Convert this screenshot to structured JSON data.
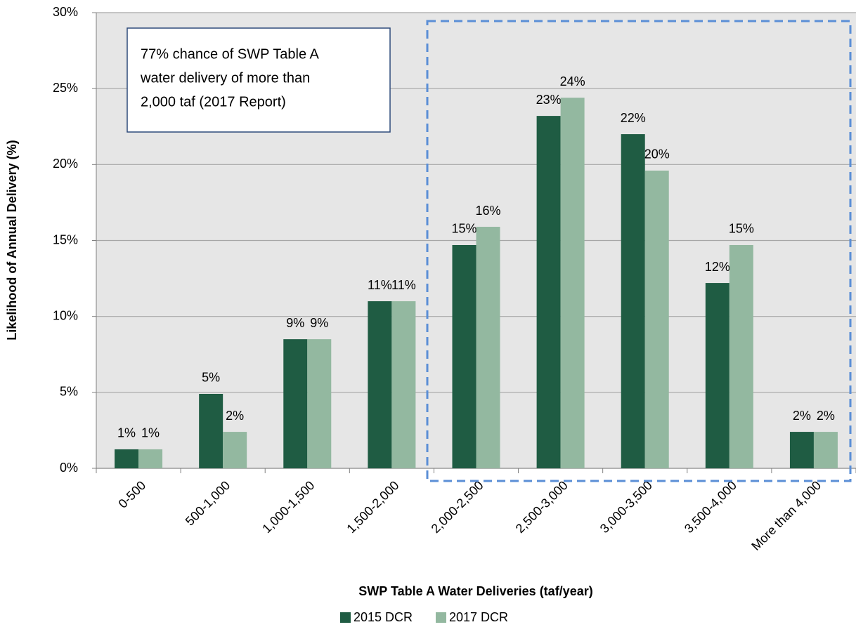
{
  "chart_data": {
    "type": "bar",
    "annotation": [
      "77% chance of SWP Table A",
      "water delivery of more than",
      "2,000 taf (2017 Report)"
    ],
    "xlabel": "SWP Table A Water Deliveries (taf/year)",
    "ylabel": "Likelihood of Annual Delivery (%)",
    "categories": [
      "0-500",
      "500-1,000",
      "1,000-1,500",
      "1,500-2,000",
      "2,000-2,500",
      "2,500-3,000",
      "3,000-3,500",
      "3,500-4,000",
      "More than 4,000"
    ],
    "series": [
      {
        "name": "2015 DCR",
        "color": "#1f5c43",
        "values": [
          1.25,
          4.9,
          8.5,
          11.0,
          14.7,
          23.2,
          22.0,
          12.2,
          2.4
        ],
        "value_labels": [
          "1%",
          "5%",
          "9%",
          "11%",
          "15%",
          "23%",
          "22%",
          "12%",
          "2%"
        ]
      },
      {
        "name": "2017 DCR",
        "color": "#93b8a0",
        "values": [
          1.25,
          2.4,
          8.5,
          11.0,
          15.9,
          24.4,
          19.6,
          14.7,
          2.4
        ],
        "value_labels": [
          "1%",
          "2%",
          "9%",
          "11%",
          "16%",
          "24%",
          "20%",
          "15%",
          "2%"
        ]
      }
    ],
    "ylim": [
      0,
      30
    ],
    "yticks": [
      {
        "value": 0,
        "label": "0%"
      },
      {
        "value": 5,
        "label": "5%"
      },
      {
        "value": 10,
        "label": "10%"
      },
      {
        "value": 15,
        "label": "15%"
      },
      {
        "value": 20,
        "label": "20%"
      },
      {
        "value": 25,
        "label": "25%"
      },
      {
        "value": 30,
        "label": "30%"
      }
    ],
    "grid": true,
    "legend": "bottom"
  }
}
